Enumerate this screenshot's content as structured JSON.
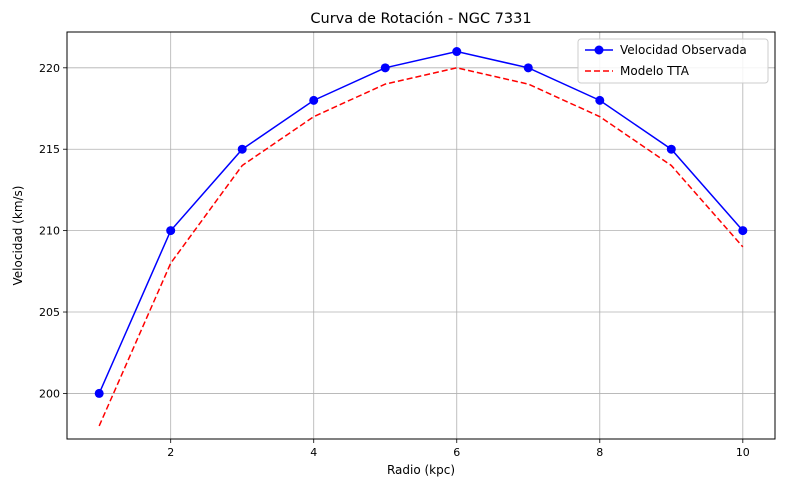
{
  "chart_data": {
    "type": "line",
    "title": "Curva de Rotación - NGC 7331",
    "xlabel": "Radio (kpc)",
    "ylabel": "Velocidad (km/s)",
    "xlim": [
      0.55,
      10.45
    ],
    "ylim": [
      197.2,
      222.2
    ],
    "xticks": [
      2,
      4,
      6,
      8,
      10
    ],
    "yticks": [
      200,
      205,
      210,
      215,
      220
    ],
    "grid": true,
    "legend_position": "top-right",
    "x": [
      1,
      2,
      3,
      4,
      5,
      6,
      7,
      8,
      9,
      10
    ],
    "series": [
      {
        "name": "Velocidad Observada",
        "color": "#0000ff",
        "style": "solid-markers",
        "values": [
          200,
          210,
          215,
          218,
          220,
          221,
          220,
          218,
          215,
          210
        ]
      },
      {
        "name": "Modelo TTA",
        "color": "#ff0000",
        "style": "dashed",
        "values": [
          198,
          208,
          214,
          217,
          219,
          220,
          219,
          217,
          214,
          209
        ]
      }
    ]
  }
}
